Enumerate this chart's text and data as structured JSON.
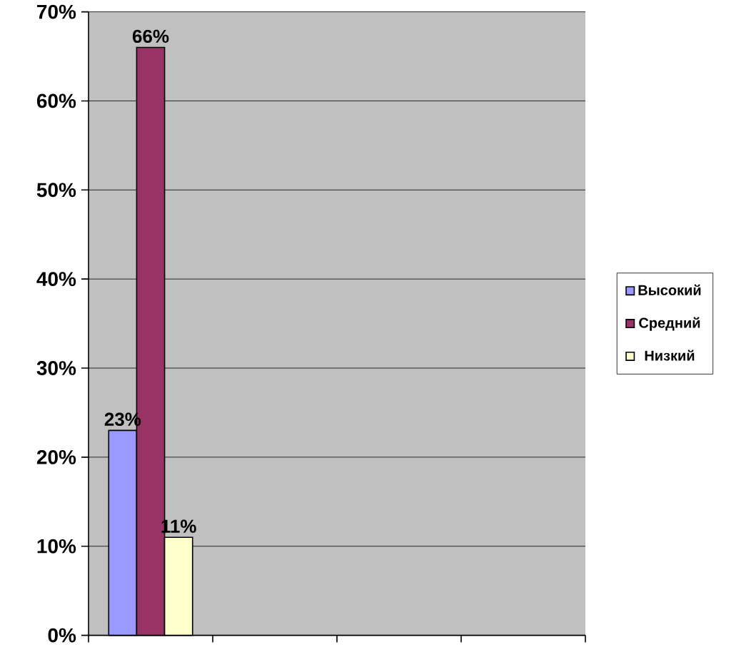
{
  "chart_data": {
    "type": "bar",
    "categories": [
      null,
      null,
      null,
      null
    ],
    "series": [
      {
        "name": "Высокий",
        "color": "#9999ff",
        "values": [
          23,
          null,
          null,
          null
        ],
        "value_labels": [
          "23%",
          null,
          null,
          null
        ]
      },
      {
        "name": "Средний",
        "color": "#993366",
        "values": [
          66,
          null,
          null,
          null
        ],
        "value_labels": [
          "66%",
          null,
          null,
          null
        ]
      },
      {
        "name": "Низкий",
        "color": "#ffffcc",
        "values": [
          11,
          null,
          null,
          null
        ],
        "value_labels": [
          "11%",
          null,
          null,
          null
        ]
      }
    ],
    "ylim": [
      0,
      70
    ],
    "yticks": [
      {
        "value": 0,
        "label": "0%"
      },
      {
        "value": 10,
        "label": "10%"
      },
      {
        "value": 20,
        "label": "20%"
      },
      {
        "value": 30,
        "label": "30%"
      },
      {
        "value": 40,
        "label": "40%"
      },
      {
        "value": 50,
        "label": "50%"
      },
      {
        "value": 60,
        "label": "60%"
      },
      {
        "value": 70,
        "label": "70%"
      }
    ],
    "grid": "y",
    "legend": "right"
  }
}
